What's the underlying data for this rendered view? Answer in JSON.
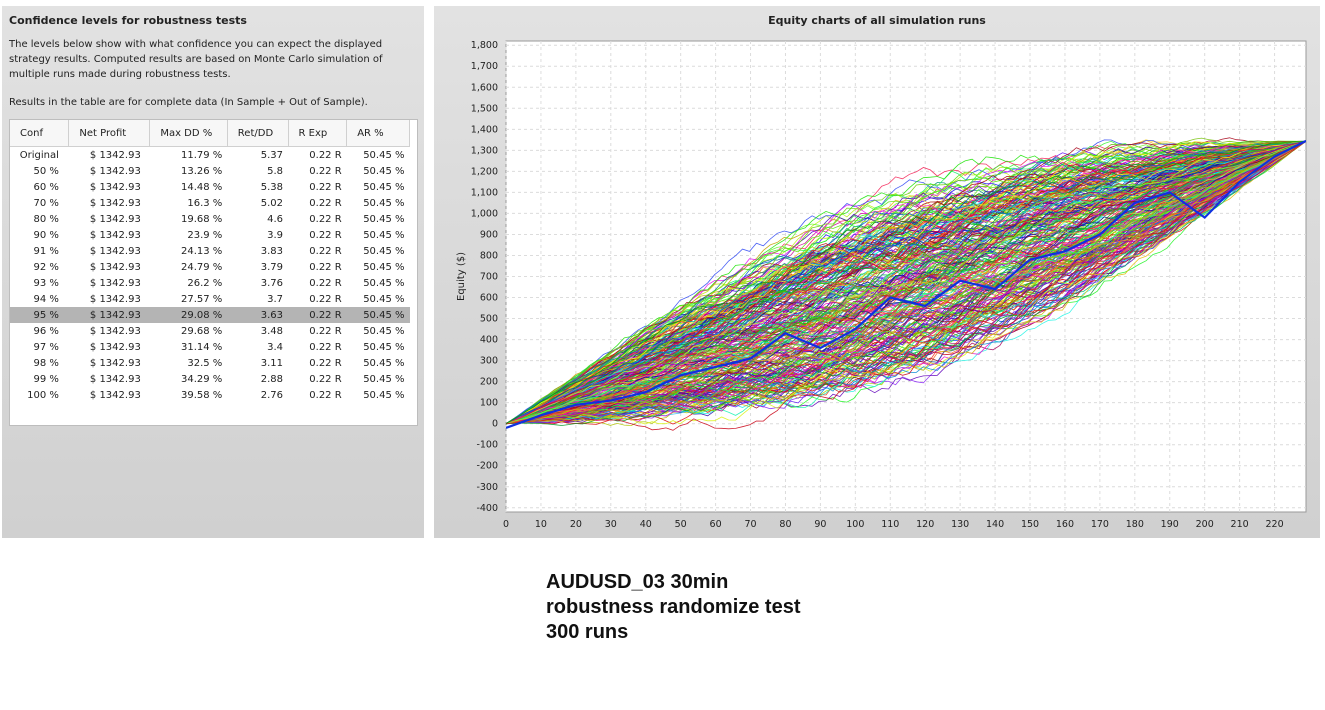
{
  "left_panel": {
    "title": "Confidence levels for robustness tests",
    "description": "The levels below show with what confidence you can expect the displayed strategy results. Computed results are based on Monte Carlo simulation of multiple runs made during robustness tests.",
    "note": "Results in the table are for complete data (In Sample + Out of Sample).",
    "table": {
      "headers": [
        "Conf",
        "Net Profit",
        "Max DD %",
        "Ret/DD",
        "R Exp",
        "AR %"
      ],
      "rows": [
        [
          "Original",
          "$ 1342.93",
          "11.79 %",
          "5.37",
          "0.22 R",
          "50.45 %"
        ],
        [
          "50 %",
          "$ 1342.93",
          "13.26 %",
          "5.8",
          "0.22 R",
          "50.45 %"
        ],
        [
          "60 %",
          "$ 1342.93",
          "14.48 %",
          "5.38",
          "0.22 R",
          "50.45 %"
        ],
        [
          "70 %",
          "$ 1342.93",
          "16.3 %",
          "5.02",
          "0.22 R",
          "50.45 %"
        ],
        [
          "80 %",
          "$ 1342.93",
          "19.68 %",
          "4.6",
          "0.22 R",
          "50.45 %"
        ],
        [
          "90 %",
          "$ 1342.93",
          "23.9 %",
          "3.9",
          "0.22 R",
          "50.45 %"
        ],
        [
          "91 %",
          "$ 1342.93",
          "24.13 %",
          "3.83",
          "0.22 R",
          "50.45 %"
        ],
        [
          "92 %",
          "$ 1342.93",
          "24.79 %",
          "3.79",
          "0.22 R",
          "50.45 %"
        ],
        [
          "93 %",
          "$ 1342.93",
          "26.2 %",
          "3.76",
          "0.22 R",
          "50.45 %"
        ],
        [
          "94 %",
          "$ 1342.93",
          "27.57 %",
          "3.7",
          "0.22 R",
          "50.45 %"
        ],
        [
          "95 %",
          "$ 1342.93",
          "29.08 %",
          "3.63",
          "0.22 R",
          "50.45 %"
        ],
        [
          "96 %",
          "$ 1342.93",
          "29.68 %",
          "3.48",
          "0.22 R",
          "50.45 %"
        ],
        [
          "97 %",
          "$ 1342.93",
          "31.14 %",
          "3.4",
          "0.22 R",
          "50.45 %"
        ],
        [
          "98 %",
          "$ 1342.93",
          "32.5 %",
          "3.11",
          "0.22 R",
          "50.45 %"
        ],
        [
          "99 %",
          "$ 1342.93",
          "34.29 %",
          "2.88",
          "0.22 R",
          "50.45 %"
        ],
        [
          "100 %",
          "$ 1342.93",
          "39.58 %",
          "2.76",
          "0.22 R",
          "50.45 %"
        ]
      ],
      "selected_row": 10
    }
  },
  "chart_data": {
    "type": "line",
    "title": "Equity charts of all simulation runs",
    "xlabel": "",
    "ylabel": "Equity ($)",
    "xlim": [
      0,
      229
    ],
    "ylim": [
      -420,
      1820
    ],
    "x_ticks": [
      "0",
      "10",
      "20",
      "30",
      "40",
      "50",
      "60",
      "70",
      "80",
      "90",
      "100",
      "110",
      "120",
      "130",
      "140",
      "150",
      "160",
      "170",
      "180",
      "190",
      "200",
      "210",
      "220"
    ],
    "y_ticks": [
      "1,800",
      "1,700",
      "1,600",
      "1,500",
      "1,400",
      "1,300",
      "1,200",
      "1,100",
      "1,000",
      "900",
      "800",
      "700",
      "600",
      "500",
      "400",
      "300",
      "200",
      "100",
      "0",
      "-100",
      "-200",
      "-300",
      "-400"
    ],
    "grid": true,
    "series_count": 300,
    "original_run_color": "#1030e0",
    "original_run": {
      "x": [
        0,
        10,
        20,
        30,
        40,
        50,
        60,
        70,
        80,
        90,
        100,
        110,
        120,
        130,
        140,
        150,
        160,
        170,
        180,
        190,
        200,
        210,
        220,
        229
      ],
      "y": [
        -20,
        40,
        90,
        110,
        150,
        230,
        270,
        310,
        430,
        360,
        450,
        600,
        560,
        680,
        640,
        780,
        820,
        900,
        1050,
        1100,
        980,
        1150,
        1270,
        1345
      ]
    },
    "end_value": 1343
  },
  "caption": {
    "line1": "AUDUSD_03 30min",
    "line2": "robustness randomize test",
    "line3": "300 runs"
  }
}
